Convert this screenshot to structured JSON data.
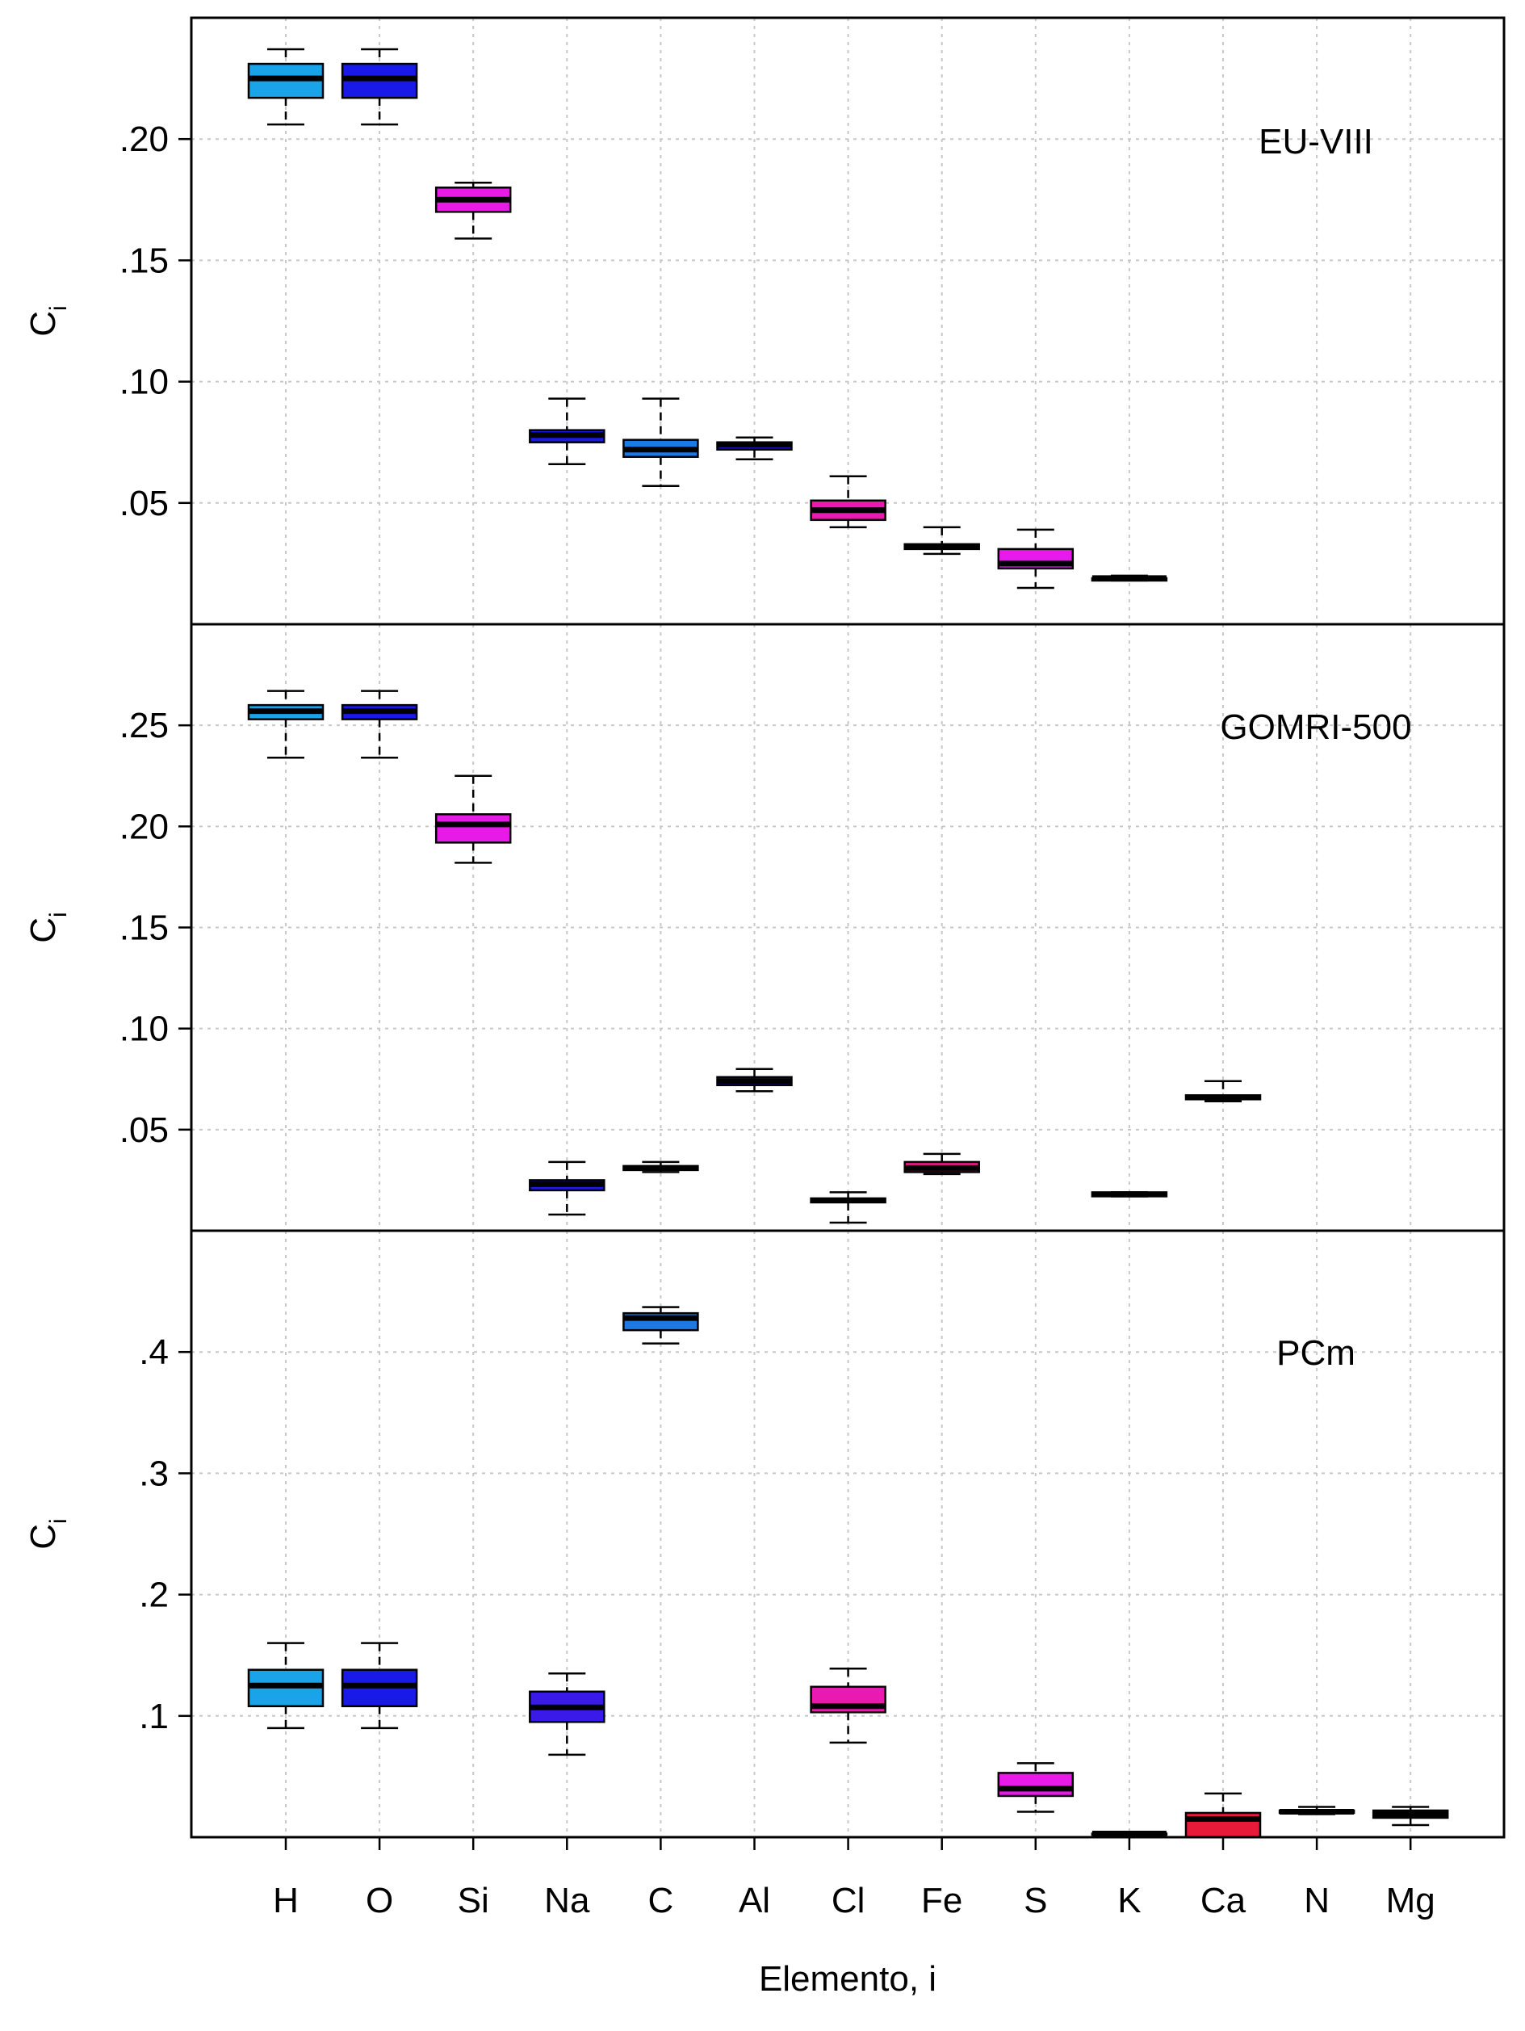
{
  "chart_data": {
    "type": "boxplot",
    "xlabel": "Elemento, i",
    "categories": [
      "H",
      "O",
      "Si",
      "Na",
      "C",
      "Al",
      "Cl",
      "Fe",
      "S",
      "K",
      "Ca",
      "N",
      "Mg"
    ],
    "panels": [
      {
        "name": "EU-VIII",
        "ylabel": "C",
        "ylabel_subscript": "i",
        "ylim": [
          0,
          0.25
        ],
        "yticks": [
          0.05,
          0.1,
          0.15,
          0.2
        ],
        "ytick_labels": [
          ".05",
          ".10",
          ".15",
          ".20"
        ],
        "boxes": [
          {
            "cat": "H",
            "min": 0.206,
            "q1": 0.217,
            "median": 0.225,
            "q3": 0.231,
            "max": 0.237,
            "color": "#1aa3e8"
          },
          {
            "cat": "O",
            "min": 0.206,
            "q1": 0.217,
            "median": 0.225,
            "q3": 0.231,
            "max": 0.237,
            "color": "#1a1ae8"
          },
          {
            "cat": "Si",
            "min": 0.159,
            "q1": 0.17,
            "median": 0.175,
            "q3": 0.18,
            "max": 0.182,
            "color": "#e81ae8"
          },
          {
            "cat": "Na",
            "min": 0.066,
            "q1": 0.075,
            "median": 0.078,
            "q3": 0.08,
            "max": 0.093,
            "color": "#1a1ae8"
          },
          {
            "cat": "C",
            "min": 0.057,
            "q1": 0.069,
            "median": 0.072,
            "q3": 0.076,
            "max": 0.093,
            "color": "#1a7ae8"
          },
          {
            "cat": "Al",
            "min": 0.068,
            "q1": 0.072,
            "median": 0.074,
            "q3": 0.075,
            "max": 0.077,
            "color": "#1a1ae8"
          },
          {
            "cat": "Cl",
            "min": 0.04,
            "q1": 0.043,
            "median": 0.047,
            "q3": 0.051,
            "max": 0.061,
            "color": "#e81ab0"
          },
          {
            "cat": "Fe",
            "min": 0.029,
            "q1": 0.031,
            "median": 0.032,
            "q3": 0.033,
            "max": 0.04,
            "color": "#e81a8a"
          },
          {
            "cat": "S",
            "min": 0.015,
            "q1": 0.023,
            "median": 0.025,
            "q3": 0.031,
            "max": 0.039,
            "color": "#e81ae8"
          },
          {
            "cat": "K",
            "min": 0.018,
            "q1": 0.018,
            "median": 0.019,
            "q3": 0.019,
            "max": 0.02,
            "color": "#1a1ae8"
          }
        ]
      },
      {
        "name": "GOMRI-500",
        "ylabel": "C",
        "ylabel_subscript": "i",
        "ylim": [
          0,
          0.3
        ],
        "yticks": [
          0.05,
          0.1,
          0.15,
          0.2,
          0.25
        ],
        "ytick_labels": [
          ".05",
          ".10",
          ".15",
          ".20",
          ".25"
        ],
        "boxes": [
          {
            "cat": "H",
            "min": 0.234,
            "q1": 0.253,
            "median": 0.257,
            "q3": 0.26,
            "max": 0.267,
            "color": "#1aa3e8"
          },
          {
            "cat": "O",
            "min": 0.234,
            "q1": 0.253,
            "median": 0.257,
            "q3": 0.26,
            "max": 0.267,
            "color": "#1a1ae8"
          },
          {
            "cat": "Si",
            "min": 0.182,
            "q1": 0.192,
            "median": 0.201,
            "q3": 0.206,
            "max": 0.225,
            "color": "#e81ae8"
          },
          {
            "cat": "Na",
            "min": 0.008,
            "q1": 0.02,
            "median": 0.023,
            "q3": 0.025,
            "max": 0.034,
            "color": "#1a1ae8"
          },
          {
            "cat": "C",
            "min": 0.029,
            "q1": 0.03,
            "median": 0.031,
            "q3": 0.032,
            "max": 0.034,
            "color": "#1a7ae8"
          },
          {
            "cat": "Al",
            "min": 0.069,
            "q1": 0.072,
            "median": 0.074,
            "q3": 0.076,
            "max": 0.08,
            "color": "#1a1ae8"
          },
          {
            "cat": "Cl",
            "min": 0.004,
            "q1": 0.014,
            "median": 0.015,
            "q3": 0.016,
            "max": 0.019,
            "color": "#e81ab0"
          },
          {
            "cat": "Fe",
            "min": 0.028,
            "q1": 0.029,
            "median": 0.031,
            "q3": 0.034,
            "max": 0.038,
            "color": "#e81a8a"
          },
          {
            "cat": "K",
            "min": 0.017,
            "q1": 0.017,
            "median": 0.018,
            "q3": 0.019,
            "max": 0.019,
            "color": "#1a1ae8"
          },
          {
            "cat": "Ca",
            "min": 0.064,
            "q1": 0.065,
            "median": 0.066,
            "q3": 0.067,
            "max": 0.074,
            "color": "#e81a5a"
          }
        ]
      },
      {
        "name": "PCm",
        "ylabel": "C",
        "ylabel_subscript": "i",
        "ylim": [
          0,
          0.5
        ],
        "yticks": [
          0.1,
          0.2,
          0.3,
          0.4
        ],
        "ytick_labels": [
          ".1",
          ".2",
          ".3",
          ".4"
        ],
        "boxes": [
          {
            "cat": "H",
            "min": 0.09,
            "q1": 0.108,
            "median": 0.125,
            "q3": 0.138,
            "max": 0.16,
            "color": "#1aa3e8"
          },
          {
            "cat": "O",
            "min": 0.09,
            "q1": 0.108,
            "median": 0.125,
            "q3": 0.138,
            "max": 0.16,
            "color": "#1a1ae8"
          },
          {
            "cat": "Na",
            "min": 0.068,
            "q1": 0.095,
            "median": 0.107,
            "q3": 0.12,
            "max": 0.135,
            "color": "#3a1ae8"
          },
          {
            "cat": "C",
            "min": 0.407,
            "q1": 0.418,
            "median": 0.428,
            "q3": 0.432,
            "max": 0.437,
            "color": "#1a7ae8"
          },
          {
            "cat": "Cl",
            "min": 0.078,
            "q1": 0.103,
            "median": 0.108,
            "q3": 0.124,
            "max": 0.139,
            "color": "#e81ab0"
          },
          {
            "cat": "S",
            "min": 0.021,
            "q1": 0.034,
            "median": 0.04,
            "q3": 0.053,
            "max": 0.061,
            "color": "#e81ae8"
          },
          {
            "cat": "K",
            "min": 0.002,
            "q1": 0.002,
            "median": 0.003,
            "q3": 0.003,
            "max": 0.003,
            "color": "#1a1ae8"
          },
          {
            "cat": "Ca",
            "min": 0.0,
            "q1": 0.0,
            "median": 0.015,
            "q3": 0.02,
            "max": 0.036,
            "color": "#e81a3a"
          },
          {
            "cat": "N",
            "min": 0.019,
            "q1": 0.02,
            "median": 0.021,
            "q3": 0.022,
            "max": 0.025,
            "color": "#1a1ae8"
          },
          {
            "cat": "Mg",
            "min": 0.01,
            "q1": 0.016,
            "median": 0.019,
            "q3": 0.022,
            "max": 0.025,
            "color": "#1a1ae8"
          }
        ]
      }
    ]
  }
}
